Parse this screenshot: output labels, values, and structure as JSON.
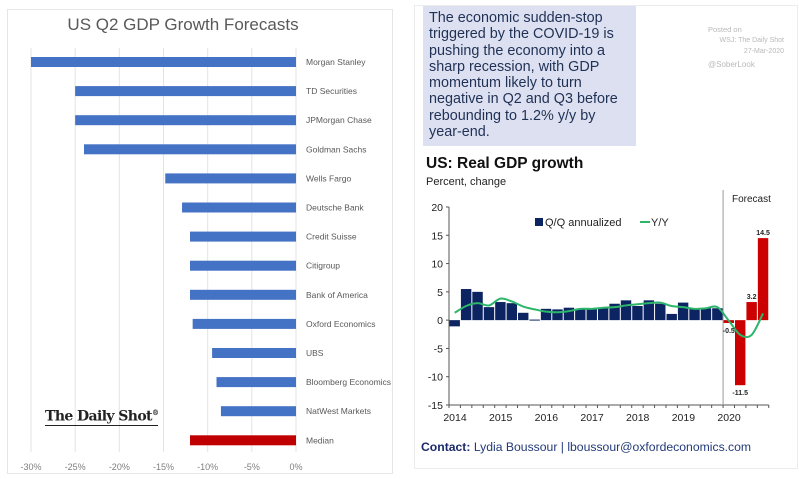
{
  "left_chart_title": "US Q2 GDP Growth Forecasts",
  "watermark": "The Daily Shot",
  "watermark_mark": "®",
  "quote": {
    "text": "The economic sudden-stop triggered by the COVID-19 is pushing the economy into a sharp recession, with GDP momentum likely to turn negative in Q2 and Q3 before rebounding to 1.2% y/y by year-end.",
    "background": "#dde0f0"
  },
  "posted": {
    "line1": "Posted on",
    "line2": "WSJ: The Daily Shot",
    "line3": "27-Mar-2020",
    "handle": "@SoberLook"
  },
  "right_chart_title": "US: Real GDP growth",
  "right_chart_subtitle": "Percent, change",
  "contact": {
    "label": "Contact:",
    "text": " Lydia Boussour | lboussour@oxfordeconomics.com"
  },
  "colors": {
    "bar_blue": "#4472c4",
    "median_red": "#c00000",
    "qq_navy": "#0c2461",
    "forecast_red": "#cc0000",
    "yy_green": "#2db56a"
  },
  "chart_data": [
    {
      "type": "bar",
      "orientation": "horizontal",
      "title": "US Q2 GDP Growth Forecasts",
      "categories": [
        "Morgan Stanley",
        "TD Securities",
        "JPMorgan Chase",
        "Goldman Sachs",
        "Wells Fargo",
        "Deutsche Bank",
        "Credit Suisse",
        "Citigroup",
        "Bank of America",
        "Oxford Economics",
        "UBS",
        "Bloomberg Economics",
        "NatWest Markets",
        "Median"
      ],
      "values": [
        -30,
        -25,
        -25,
        -24,
        -14.8,
        -12.9,
        -12,
        -12,
        -12,
        -11.7,
        -9.5,
        -9,
        -8.5,
        -12
      ],
      "highlight": [
        "Median"
      ],
      "xlabel": "",
      "ylabel": "",
      "xlim": [
        -30,
        0
      ],
      "xticks": [
        "-30%",
        "-25%",
        "-20%",
        "-15%",
        "-10%",
        "-5%",
        "0%"
      ],
      "xtick_values": [
        -30,
        -25,
        -20,
        -15,
        -10,
        -5,
        0
      ],
      "grid": true,
      "legend": "none"
    },
    {
      "type": "bar",
      "title": "US: Real GDP growth",
      "subtitle": "Percent, change",
      "ylim": [
        -15,
        20
      ],
      "yticks": [
        20,
        15,
        10,
        5,
        0,
        -5,
        -10,
        -15
      ],
      "xticks": [
        "2014",
        "2015",
        "2016",
        "2017",
        "2018",
        "2019",
        "2020"
      ],
      "x_quarters": [
        "2014Q1",
        "2014Q2",
        "2014Q3",
        "2014Q4",
        "2015Q1",
        "2015Q2",
        "2015Q3",
        "2015Q4",
        "2016Q1",
        "2016Q2",
        "2016Q3",
        "2016Q4",
        "2017Q1",
        "2017Q2",
        "2017Q3",
        "2017Q4",
        "2018Q1",
        "2018Q2",
        "2018Q3",
        "2018Q4",
        "2019Q1",
        "2019Q2",
        "2019Q3",
        "2019Q4",
        "2020Q1",
        "2020Q2",
        "2020Q3",
        "2020Q4"
      ],
      "forecast_label": "Forecast",
      "forecast_start_index": 24,
      "legend": "top-center",
      "series": [
        {
          "name": "Q/Q annualized",
          "type": "bar",
          "values": [
            -1.1,
            5.5,
            5.0,
            2.3,
            3.2,
            3.0,
            1.3,
            0.1,
            2.0,
            1.9,
            2.2,
            2.0,
            2.0,
            2.2,
            2.9,
            3.5,
            2.5,
            3.5,
            2.9,
            1.1,
            3.1,
            2.0,
            2.1,
            2.1,
            -0.5,
            -11.5,
            3.2,
            14.5
          ]
        },
        {
          "name": "Y/Y",
          "type": "line",
          "values": [
            1.3,
            2.5,
            3.0,
            2.6,
            3.8,
            3.3,
            2.4,
            1.9,
            1.5,
            1.4,
            1.6,
            2.0,
            2.0,
            2.2,
            2.3,
            2.6,
            2.8,
            3.0,
            3.1,
            2.5,
            2.3,
            2.0,
            2.1,
            2.3,
            -0.1,
            -2.6,
            -2.6,
            1.2
          ]
        }
      ],
      "data_labels": [
        {
          "index": 24,
          "text": "-0.5"
        },
        {
          "index": 25,
          "text": "-11.5"
        },
        {
          "index": 26,
          "text": "3.2"
        },
        {
          "index": 27,
          "text": "14.5"
        }
      ]
    }
  ]
}
